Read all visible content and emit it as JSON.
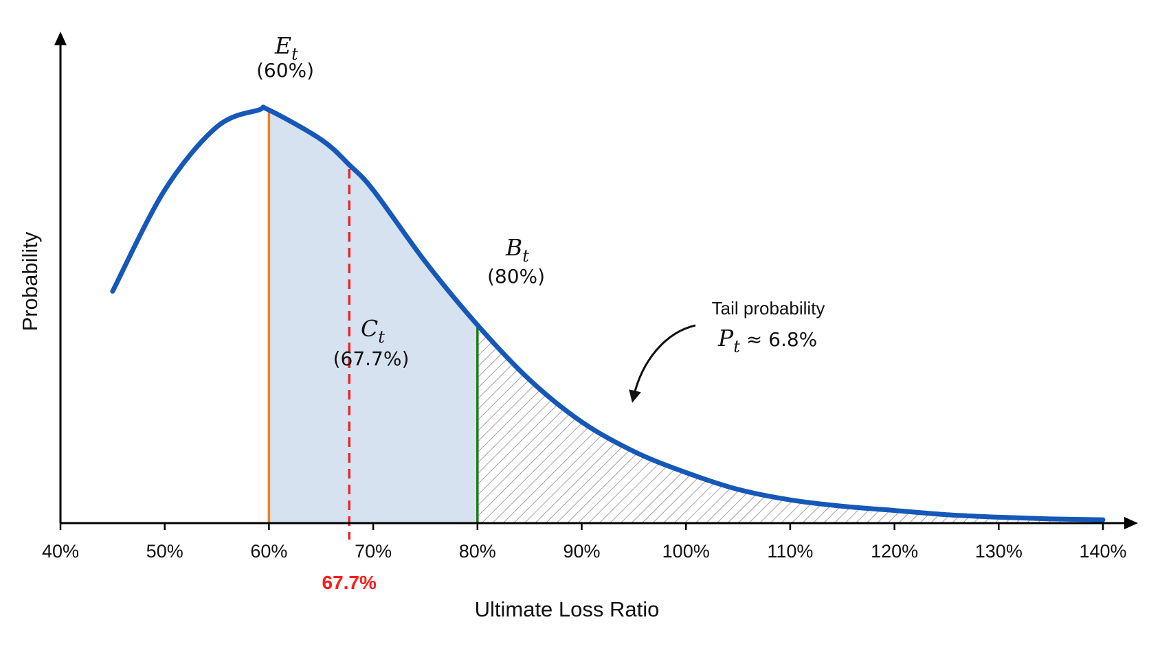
{
  "chart_data": {
    "type": "area",
    "xlabel": "Ultimate Loss Ratio",
    "ylabel": "Probability",
    "x_ticks": [
      "40%",
      "50%",
      "60%",
      "70%",
      "80%",
      "90%",
      "100%",
      "110%",
      "120%",
      "130%",
      "140%"
    ],
    "xlim": [
      40,
      140
    ],
    "curve": {
      "x": [
        45,
        50,
        55,
        59,
        60,
        65,
        67.7,
        70,
        75,
        80,
        85,
        90,
        95,
        100,
        105,
        110,
        115,
        120,
        125,
        130,
        135,
        140
      ],
      "y": [
        0.55,
        0.79,
        0.94,
        0.98,
        0.98,
        0.91,
        0.85,
        0.79,
        0.62,
        0.47,
        0.34,
        0.24,
        0.17,
        0.12,
        0.08,
        0.055,
        0.04,
        0.03,
        0.02,
        0.014,
        0.01,
        0.008
      ]
    },
    "markers": [
      {
        "symbol": "E",
        "subscript": "t",
        "label": "(60%)",
        "x": 60,
        "color": "#f07f1e",
        "style": "solid"
      },
      {
        "symbol": "C",
        "subscript": "t",
        "label": "(67.7%)",
        "x": 67.7,
        "color": "#e8262a",
        "style": "dashed"
      },
      {
        "symbol": "B",
        "subscript": "t",
        "label": "(80%)",
        "x": 80,
        "color": "#1a7a1a",
        "style": "solid"
      }
    ],
    "x_axis_callout": "67.7%",
    "shaded_region": {
      "from": 60,
      "to": 80,
      "color": "#d6e2f0"
    },
    "tail_region": {
      "from": 80,
      "to": 140,
      "fill": "hatched"
    },
    "annotation": {
      "line1": "Tail probability",
      "symbol": "P",
      "subscript": "t",
      "value": " ≈ 6.8%"
    },
    "colors": {
      "curve": "#1558b8",
      "axis": "#000000"
    }
  }
}
